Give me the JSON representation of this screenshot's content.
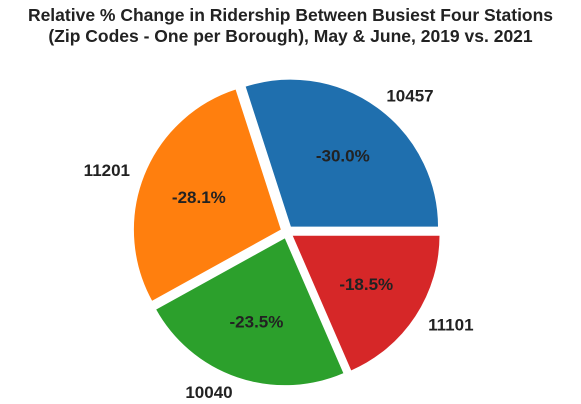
{
  "chart_data": {
    "type": "pie",
    "title_line1": "Relative % Change in Ridership Between Busiest Four Stations",
    "title_line2": "(Zip Codes - One per Borough), May & June, 2019 vs. 2021",
    "slices": [
      {
        "label": "10457",
        "value": 30.0,
        "pct_label": "-30.0%",
        "color": "#1f6fae"
      },
      {
        "label": "11201",
        "value": 28.1,
        "pct_label": "-28.1%",
        "color": "#ff7f0e"
      },
      {
        "label": "10040",
        "value": 23.5,
        "pct_label": "-23.5%",
        "color": "#2ca02c"
      },
      {
        "label": "11101",
        "value": 18.5,
        "pct_label": "-18.5%",
        "color": "#d62728"
      }
    ],
    "start_angle_deg": 0,
    "direction": "counterclockwise",
    "exploded": true
  }
}
